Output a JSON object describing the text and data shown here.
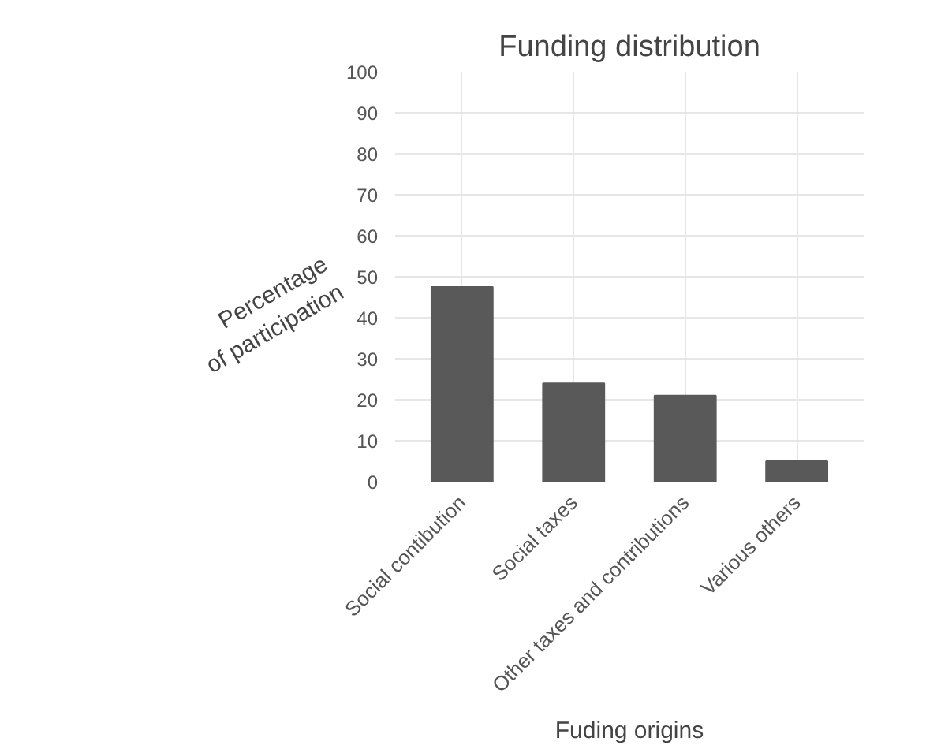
{
  "chart_data": {
    "type": "bar",
    "title": "Funding distribution",
    "xlabel": "Fuding origins",
    "ylabel": "Percentage\nof participation",
    "categories": [
      "Social contibution",
      "Social taxes",
      "Other taxes and contributions",
      "Various others"
    ],
    "values": [
      47.5,
      24,
      21,
      5
    ],
    "color": "#595959",
    "ylim": [
      0,
      100
    ],
    "yticks": [
      0,
      10,
      20,
      30,
      40,
      50,
      60,
      70,
      80,
      90,
      100
    ],
    "grid": true
  }
}
